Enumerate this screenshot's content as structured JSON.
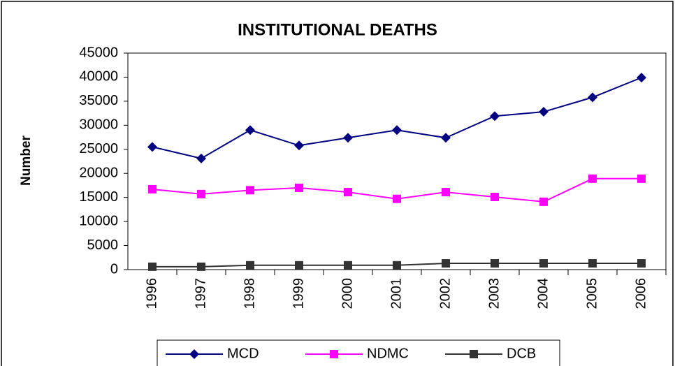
{
  "chart_data": {
    "type": "line",
    "title": "INSTITUTIONAL DEATHS",
    "y_label": "Number",
    "categories": [
      "1996",
      "1997",
      "1998",
      "1999",
      "2000",
      "2001",
      "2002",
      "2003",
      "2004",
      "2005",
      "2006"
    ],
    "series": [
      {
        "name": "MCD",
        "color": "#000080",
        "marker": "diamond",
        "values": [
          25500,
          23100,
          29000,
          25800,
          27400,
          29000,
          27400,
          31900,
          32800,
          35800,
          39900
        ]
      },
      {
        "name": "NDMC",
        "color": "#ff00ff",
        "marker": "square",
        "values": [
          16700,
          15700,
          16500,
          17000,
          16100,
          14700,
          16100,
          15100,
          14100,
          18900,
          18900
        ]
      },
      {
        "name": "DCB",
        "color": "#333333",
        "marker": "square",
        "values": [
          600,
          600,
          900,
          900,
          900,
          900,
          1300,
          1300,
          1300,
          1300,
          1300
        ]
      }
    ],
    "ylim": [
      0,
      45000
    ],
    "yticks": [
      0,
      5000,
      10000,
      15000,
      20000,
      25000,
      30000,
      35000,
      40000,
      45000
    ],
    "grid": false,
    "legend": "bottom"
  }
}
